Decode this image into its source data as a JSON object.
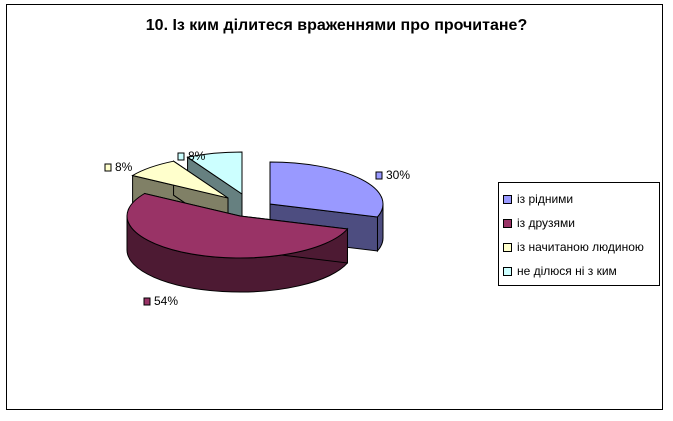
{
  "chart_data": {
    "type": "pie",
    "title": "10. Із ким ділитеся враженнями про прочитане?",
    "categories": [
      "із рідними",
      "із друзями",
      "із начитаною людиною",
      "не ділюся ні з ким"
    ],
    "values": [
      30,
      54,
      8,
      8
    ],
    "data_labels": [
      "30%",
      "54%",
      "8%",
      "8%"
    ],
    "colors": [
      "#9999ff",
      "#993366",
      "#ffffcc",
      "#ccffff"
    ],
    "side_colors": [
      "#4d4d80",
      "#4d1a33",
      "#808066",
      "#668080"
    ],
    "legend_position": "right",
    "style": "3d-exploded"
  }
}
